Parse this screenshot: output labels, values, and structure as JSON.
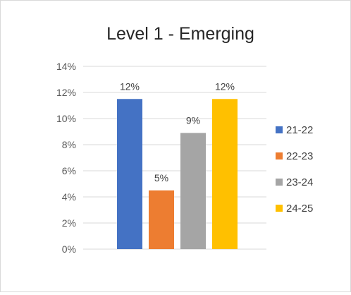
{
  "chart_data": {
    "type": "bar",
    "title": "Level 1 - Emerging",
    "xlabel": "",
    "ylabel": "",
    "ylim": [
      0,
      14
    ],
    "y_ticks": [
      0,
      2,
      4,
      6,
      8,
      10,
      12,
      14
    ],
    "y_tick_labels": [
      "0%",
      "2%",
      "4%",
      "6%",
      "8%",
      "10%",
      "12%",
      "14%"
    ],
    "grid": true,
    "legend_position": "right",
    "series": [
      {
        "name": "21-22",
        "value": 11.5,
        "label": "12%",
        "color": "#4472C4"
      },
      {
        "name": "22-23",
        "value": 4.5,
        "label": "5%",
        "color": "#ED7D31"
      },
      {
        "name": "23-24",
        "value": 8.9,
        "label": "9%",
        "color": "#A5A5A5"
      },
      {
        "name": "24-25",
        "value": 11.5,
        "label": "12%",
        "color": "#FFC000"
      }
    ]
  }
}
